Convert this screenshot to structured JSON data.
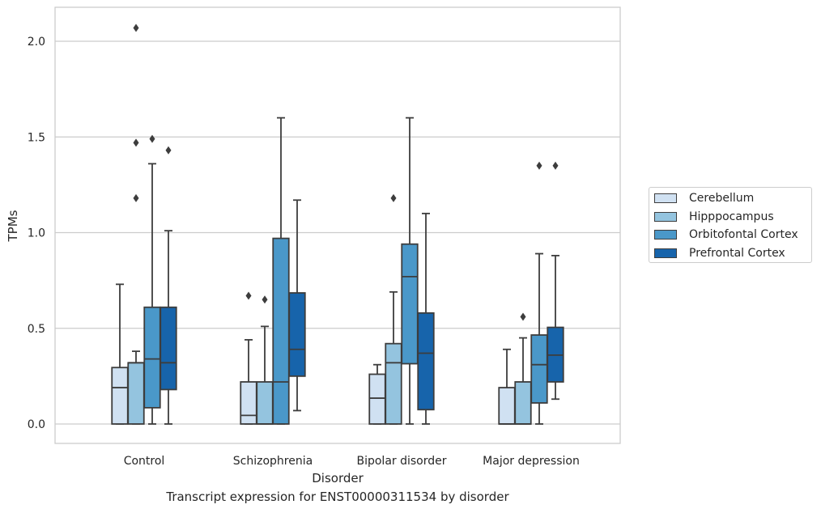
{
  "caption": "Transcript expression for ENST00000311534 by disorder",
  "colors": {
    "grid": "#cccccc",
    "frame": "#cccccc",
    "box_edge": "#3d3d3d"
  },
  "chart_data": {
    "type": "box",
    "title": "",
    "xlabel": "Disorder",
    "ylabel": "TPMs",
    "ylim": [
      -0.1,
      2.18
    ],
    "yticks": [
      0.0,
      0.5,
      1.0,
      1.5,
      2.0
    ],
    "ytick_labels": [
      "0.0",
      "0.5",
      "1.0",
      "1.5",
      "2.0"
    ],
    "grid": "horizontal",
    "legend_placement": "right",
    "categories": [
      "Control",
      "Schizophrenia",
      "Bipolar disorder",
      "Major depression"
    ],
    "series": [
      {
        "name": "Cerebellum",
        "color": "#d0e1f2",
        "boxes": [
          {
            "whislo": 0.0,
            "q1": 0.0,
            "med": 0.19,
            "q3": 0.295,
            "whishi": 0.73,
            "fliers": []
          },
          {
            "whislo": 0.0,
            "q1": 0.0,
            "med": 0.045,
            "q3": 0.22,
            "whishi": 0.44,
            "fliers": [
              0.67
            ]
          },
          {
            "whislo": 0.0,
            "q1": 0.0,
            "med": 0.135,
            "q3": 0.26,
            "whishi": 0.31,
            "fliers": []
          },
          {
            "whislo": 0.0,
            "q1": 0.0,
            "med": 0.0,
            "q3": 0.19,
            "whishi": 0.39,
            "fliers": []
          }
        ]
      },
      {
        "name": "Hipppocampus",
        "color": "#94c4df",
        "boxes": [
          {
            "whislo": 0.0,
            "q1": 0.0,
            "med": 0.32,
            "q3": 0.32,
            "whishi": 0.38,
            "fliers": [
              1.18,
              1.47,
              2.07
            ]
          },
          {
            "whislo": 0.0,
            "q1": 0.0,
            "med": 0.0,
            "q3": 0.22,
            "whishi": 0.51,
            "fliers": [
              0.65
            ]
          },
          {
            "whislo": 0.0,
            "q1": 0.0,
            "med": 0.32,
            "q3": 0.42,
            "whishi": 0.69,
            "fliers": [
              1.18
            ]
          },
          {
            "whislo": 0.0,
            "q1": 0.0,
            "med": 0.0,
            "q3": 0.22,
            "whishi": 0.45,
            "fliers": [
              0.56
            ]
          }
        ]
      },
      {
        "name": "Orbitofontal Cortex",
        "color": "#4a98c9",
        "boxes": [
          {
            "whislo": 0.0,
            "q1": 0.085,
            "med": 0.34,
            "q3": 0.61,
            "whishi": 1.36,
            "fliers": [
              1.49
            ]
          },
          {
            "whislo": 0.0,
            "q1": 0.0,
            "med": 0.22,
            "q3": 0.97,
            "whishi": 1.6,
            "fliers": []
          },
          {
            "whislo": 0.0,
            "q1": 0.315,
            "med": 0.77,
            "q3": 0.94,
            "whishi": 1.6,
            "fliers": []
          },
          {
            "whislo": 0.0,
            "q1": 0.11,
            "med": 0.31,
            "q3": 0.465,
            "whishi": 0.89,
            "fliers": [
              1.35
            ]
          }
        ]
      },
      {
        "name": "Prefrontal Cortex",
        "color": "#1764ab",
        "boxes": [
          {
            "whislo": 0.0,
            "q1": 0.18,
            "med": 0.32,
            "q3": 0.61,
            "whishi": 1.01,
            "fliers": [
              1.43
            ]
          },
          {
            "whislo": 0.07,
            "q1": 0.25,
            "med": 0.39,
            "q3": 0.685,
            "whishi": 1.17,
            "fliers": []
          },
          {
            "whislo": 0.0,
            "q1": 0.075,
            "med": 0.37,
            "q3": 0.58,
            "whishi": 1.1,
            "fliers": []
          },
          {
            "whislo": 0.13,
            "q1": 0.22,
            "med": 0.36,
            "q3": 0.505,
            "whishi": 0.88,
            "fliers": [
              1.35
            ]
          }
        ]
      }
    ]
  }
}
